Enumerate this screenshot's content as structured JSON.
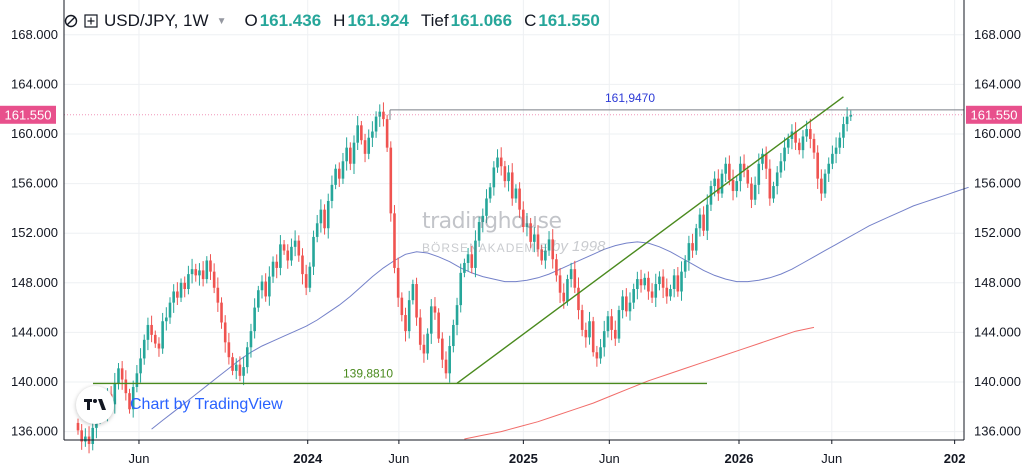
{
  "header": {
    "symbol": "USD/JPY, 1W",
    "o_label": "O",
    "o_value": "161.436",
    "h_label": "H",
    "h_value": "161.924",
    "l_label": "Tief",
    "l_value": "161.066",
    "c_label": "C",
    "c_value": "161.550"
  },
  "colors": {
    "up": "#26a69a",
    "down": "#ef5350",
    "ma_short": "#5c6bc0",
    "ma_long": "#ef5350",
    "trendline": "#4a8a1e",
    "resistance": "#7b7f87",
    "price_tag": "#e8508c",
    "annotation_blue": "#2d3ad6"
  },
  "watermark": {
    "line1": "tradinghouse",
    "line2": "BÖRSENAKADEMIE",
    "line3": "by 1998"
  },
  "attribution": {
    "text": "Chart by TradingView",
    "logo": "tradingview-logo-icon"
  },
  "chart_data": {
    "type": "candlestick",
    "title": "USD/JPY, 1W",
    "ylim": [
      135.0,
      170.0
    ],
    "y_ticks": [
      "168.000",
      "164.000",
      "160.000",
      "156.000",
      "152.000",
      "148.000",
      "144.000",
      "140.000",
      "136.000"
    ],
    "y_tick_values": [
      168,
      164,
      160,
      156,
      152,
      148,
      144,
      140,
      136
    ],
    "x_ticks": [
      {
        "label": "Jun",
        "t": 0.0833,
        "bold": false
      },
      {
        "label": "2024",
        "t": 0.2708,
        "bold": true
      },
      {
        "label": "Jun",
        "t": 0.3721,
        "bold": false
      },
      {
        "label": "2025",
        "t": 0.5104,
        "bold": true
      },
      {
        "label": "Jun",
        "t": 0.6059,
        "bold": false
      },
      {
        "label": "2026",
        "t": 0.75,
        "bold": true
      },
      {
        "label": "Jun",
        "t": 0.8531,
        "bold": false
      },
      {
        "label": "202",
        "t": 0.9896,
        "bold": true
      }
    ],
    "current_price": 161.55,
    "current_price_label": "161.550",
    "closes": [
      136.1,
      135.2,
      135.6,
      135.0,
      136.3,
      137.2,
      138.4,
      137.5,
      139.0,
      138.2,
      139.9,
      141.1,
      140.2,
      139.1,
      137.8,
      139.6,
      140.7,
      141.9,
      143.4,
      144.6,
      143.8,
      143.1,
      142.7,
      144.9,
      145.2,
      146.4,
      147.3,
      146.8,
      148.0,
      147.5,
      148.7,
      149.1,
      148.6,
      149.0,
      148.3,
      149.8,
      148.9,
      147.6,
      146.4,
      144.8,
      143.2,
      142.0,
      140.9,
      141.4,
      140.5,
      141.2,
      142.8,
      144.1,
      146.0,
      147.4,
      148.1,
      146.9,
      148.5,
      149.7,
      149.2,
      151.1,
      150.6,
      149.8,
      150.9,
      151.4,
      150.2,
      148.7,
      147.6,
      149.3,
      151.7,
      152.8,
      153.9,
      152.4,
      154.6,
      155.9,
      157.2,
      156.4,
      157.8,
      158.9,
      157.6,
      159.3,
      160.7,
      159.5,
      158.4,
      159.7,
      160.2,
      161.4,
      161.8,
      161.2,
      158.9,
      153.6,
      149.2,
      146.8,
      145.4,
      144.1,
      146.6,
      147.9,
      145.2,
      143.0,
      142.3,
      143.9,
      146.1,
      145.6,
      143.5,
      141.8,
      140.7,
      142.9,
      144.6,
      146.2,
      148.8,
      149.6,
      150.3,
      149.2,
      151.4,
      152.9,
      153.4,
      154.8,
      155.7,
      157.3,
      158.1,
      157.4,
      156.2,
      156.9,
      154.8,
      155.6,
      153.9,
      152.5,
      152.8,
      151.3,
      151.9,
      150.7,
      149.8,
      150.6,
      151.5,
      149.9,
      148.6,
      147.2,
      146.5,
      148.3,
      149.1,
      147.6,
      145.8,
      144.2,
      143.6,
      144.9,
      142.4,
      141.9,
      142.8,
      144.1,
      145.3,
      144.2,
      143.5,
      145.8,
      146.9,
      145.7,
      146.4,
      147.5,
      148.3,
      147.8,
      148.4,
      147.3,
      146.8,
      147.9,
      148.5,
      147.6,
      146.9,
      147.5,
      148.6,
      147.3,
      148.9,
      149.8,
      151.2,
      150.6,
      152.4,
      153.5,
      152.2,
      154.3,
      155.8,
      156.4,
      155.2,
      156.8,
      157.6,
      156.3,
      155.4,
      156.2,
      157.6,
      157.1,
      156.0,
      154.7,
      155.9,
      157.6,
      158.4,
      157.2,
      154.8,
      155.8,
      156.9,
      157.8,
      158.9,
      159.6,
      160.2,
      159.3,
      158.7,
      159.8,
      160.4,
      159.6,
      158.5,
      156.4,
      155.2,
      156.8,
      157.6,
      158.4,
      158.9,
      159.7,
      160.8,
      161.4,
      161.55
    ],
    "candle_colors": "1 for up (green), 0 for down (red)",
    "ma_short": {
      "start_index": 20,
      "values": [
        136.2,
        136.9,
        137.6,
        138.3,
        139.0,
        139.7,
        140.4,
        141.1,
        141.8,
        142.4,
        142.9,
        143.3,
        143.7,
        144.1,
        144.5,
        145.0,
        145.6,
        146.2,
        146.9,
        147.7,
        148.5,
        149.2,
        149.8,
        150.3,
        150.5,
        150.4,
        150.1,
        149.7,
        149.2,
        148.8,
        148.5,
        148.3,
        148.1,
        148.1,
        148.2,
        148.4,
        148.7,
        149.1,
        149.5,
        149.9,
        150.3,
        150.7,
        151.0,
        151.2,
        151.3,
        151.2,
        150.9,
        150.5,
        150.0,
        149.5,
        149.0,
        148.6,
        148.3,
        148.1,
        148.1,
        148.2,
        148.4,
        148.7,
        149.1,
        149.6,
        150.1,
        150.6,
        151.1,
        151.6,
        152.1,
        152.6,
        153.0,
        153.4,
        153.8,
        154.2,
        154.5,
        154.8,
        155.1,
        155.4,
        155.7
      ]
    },
    "ma_short_step": 3,
    "ma_long": {
      "start_index": 105,
      "values": [
        135.4,
        135.7,
        136.0,
        136.4,
        136.8,
        137.3,
        137.8,
        138.3,
        138.9,
        139.5,
        140.1,
        140.6,
        141.1,
        141.6,
        142.1,
        142.6,
        143.1,
        143.6,
        144.1,
        144.4
      ]
    },
    "ma_long_step": 5,
    "resistance_level": {
      "value": 161.947,
      "label": "161,9470"
    },
    "support_level": {
      "value": 139.881,
      "label": "139,8810"
    },
    "trendline": {
      "start_index": 103,
      "start_value": 139.9,
      "end_index": 208,
      "end_value": 163.0
    }
  }
}
